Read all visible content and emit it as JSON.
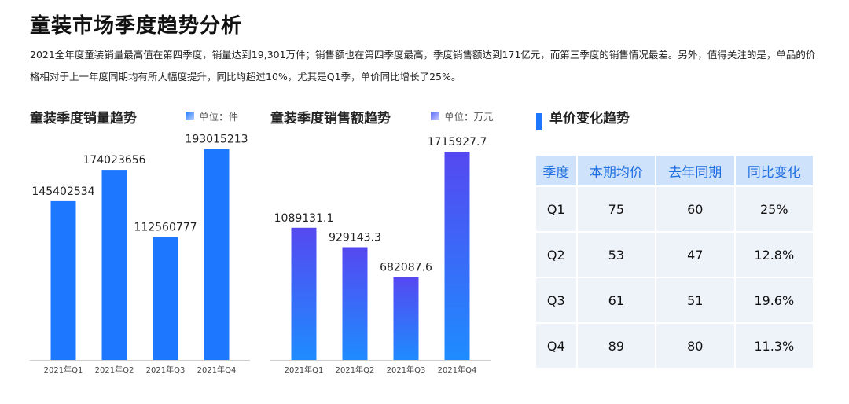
{
  "page": {
    "title": "童装市场季度趋势分析",
    "summary": "2021全年度童装销量最高值在第四季度，销量达到19,301万件；销售额也在第四季度最高，季度销售额达到171亿元，而第三季度的销售情况最差。另外，值得关注的是，单品的价格相对于上一年度同期均有所大幅度提升，同比均超过10%，尤其是Q1季，单价同比增长了25%。"
  },
  "chart_data": [
    {
      "type": "bar",
      "title": "童装季度销量趋势",
      "unit": "单位：件",
      "categories": [
        "2021年Q1",
        "2021年Q2",
        "2021年Q3",
        "2021年Q4"
      ],
      "values": [
        145402534,
        174023656,
        112560777,
        193015213
      ],
      "value_labels": [
        "145402534",
        "174023656",
        "112560777",
        "193015213"
      ],
      "ylim": [
        0,
        200000000
      ],
      "grid": false,
      "color": "#1e78ff"
    },
    {
      "type": "bar",
      "title": "童装季度销售额趋势",
      "unit": "单位：万元",
      "categories": [
        "2021年Q1",
        "2021年Q2",
        "2021年Q3",
        "2021年Q4"
      ],
      "values": [
        1089131.1,
        929143.3,
        682087.6,
        1715927.7
      ],
      "value_labels": [
        "1089131.1",
        "929143.3",
        "682087.6",
        "1715927.7"
      ],
      "ylim": [
        0,
        1800000
      ],
      "grid": false,
      "color": "#5548f0",
      "color_end": "#1e8cff"
    }
  ],
  "table": {
    "title": "单价变化趋势",
    "headers": [
      "季度",
      "本期均价",
      "去年同期",
      "同比变化"
    ],
    "rows": [
      [
        "Q1",
        "75",
        "60",
        "25%"
      ],
      [
        "Q2",
        "53",
        "47",
        "12.8%"
      ],
      [
        "Q3",
        "61",
        "51",
        "19.6%"
      ],
      [
        "Q4",
        "89",
        "80",
        "11.3%"
      ]
    ]
  }
}
